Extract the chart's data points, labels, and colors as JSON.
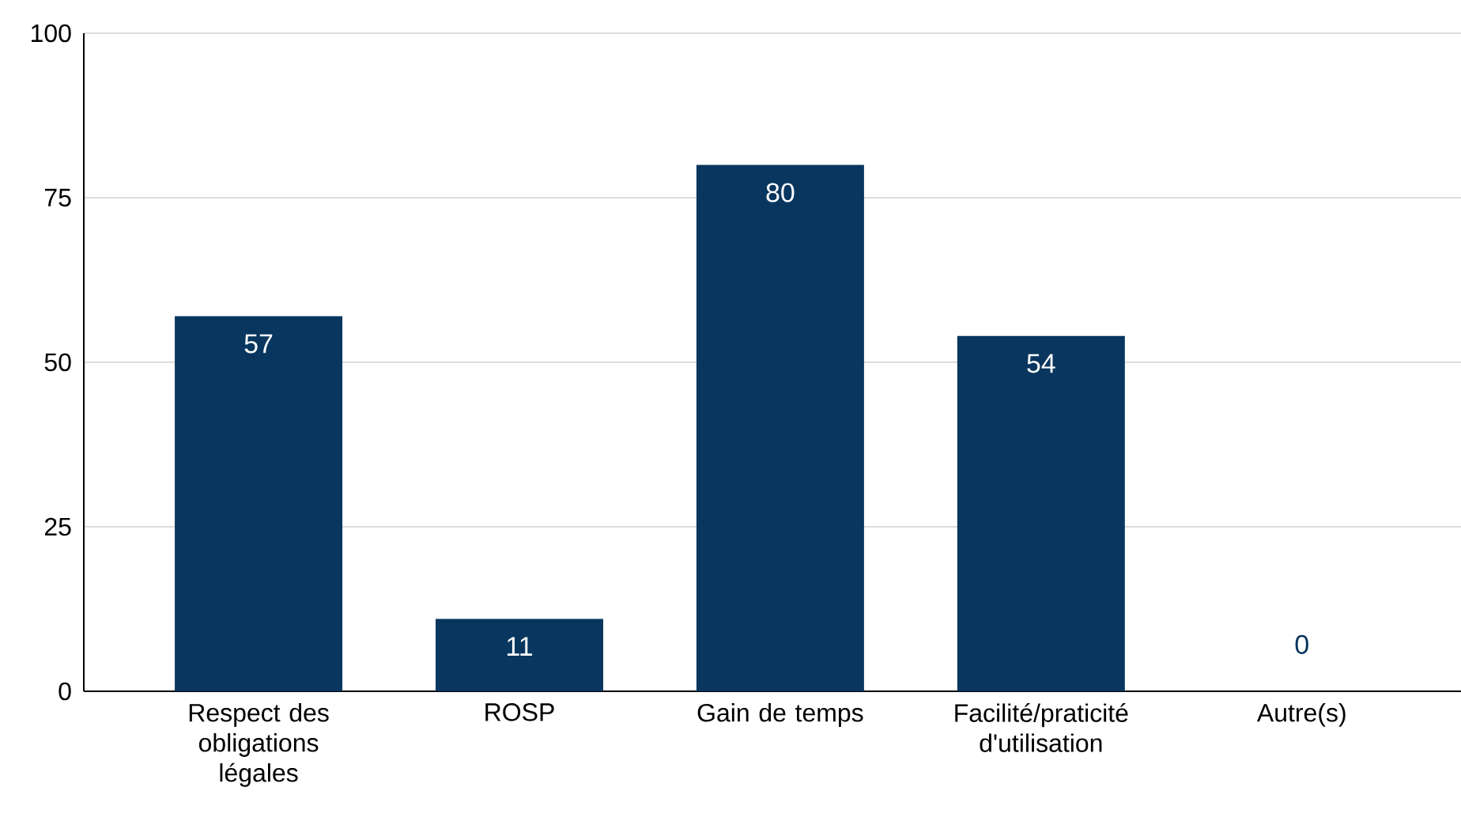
{
  "chart_data": {
    "type": "bar",
    "categories": [
      "Respect des obligations légales",
      "ROSP",
      "Gain de temps",
      "Facilité/praticité d'utilisation",
      "Autre(s)"
    ],
    "values": [
      57,
      11,
      80,
      54,
      0
    ],
    "color": "#08365e",
    "ylim": [
      0,
      100
    ],
    "yticks": [
      0,
      25,
      50,
      75,
      100
    ],
    "grid": "y",
    "data_labels": true
  }
}
